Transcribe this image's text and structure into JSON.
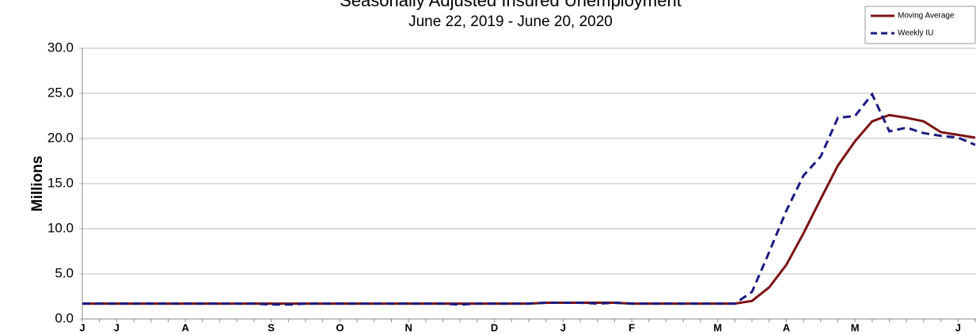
{
  "chart_data": {
    "type": "line",
    "title": "Seasonally Adjusted Insured Unemployment",
    "subtitle": "June 22, 2019 - June 20, 2020",
    "y_label": "Millions",
    "categories": [
      "J",
      null,
      "J",
      null,
      null,
      null,
      "A",
      null,
      null,
      null,
      null,
      "S",
      null,
      null,
      null,
      "O",
      null,
      null,
      null,
      "N",
      null,
      null,
      null,
      null,
      "D",
      null,
      null,
      null,
      "J",
      null,
      null,
      null,
      "F",
      null,
      null,
      null,
      null,
      "M",
      null,
      null,
      null,
      "A",
      null,
      null,
      null,
      "M",
      null,
      null,
      null,
      null,
      null,
      "J",
      null
    ],
    "series": [
      {
        "name": "Moving Average",
        "color": "#7b1212",
        "dash": false,
        "values": [
          1.7,
          1.7,
          1.7,
          1.7,
          1.7,
          1.7,
          1.7,
          1.7,
          1.7,
          1.7,
          1.7,
          1.7,
          1.7,
          1.7,
          1.7,
          1.7,
          1.7,
          1.7,
          1.7,
          1.7,
          1.7,
          1.7,
          1.7,
          1.7,
          1.7,
          1.7,
          1.7,
          1.8,
          1.8,
          1.8,
          1.8,
          1.8,
          1.7,
          1.7,
          1.7,
          1.7,
          1.7,
          1.7,
          1.7,
          2.0,
          3.5,
          6.0,
          9.5,
          13.3,
          17.0,
          19.7,
          21.9,
          22.6,
          22.3,
          21.9,
          20.7,
          20.4,
          20.1
        ]
      },
      {
        "name": "Weekly IU",
        "color": "#1a1a80",
        "dash": true,
        "values": [
          1.7,
          1.7,
          1.7,
          1.7,
          1.7,
          1.7,
          1.7,
          1.7,
          1.7,
          1.7,
          1.7,
          1.6,
          1.6,
          1.7,
          1.7,
          1.7,
          1.7,
          1.7,
          1.7,
          1.7,
          1.7,
          1.7,
          1.6,
          1.7,
          1.7,
          1.7,
          1.7,
          1.8,
          1.8,
          1.8,
          1.7,
          1.8,
          1.7,
          1.7,
          1.7,
          1.7,
          1.7,
          1.7,
          1.7,
          3.0,
          7.4,
          12.0,
          15.9,
          18.0,
          22.3,
          22.5,
          24.9,
          20.8,
          21.2,
          20.6,
          20.3,
          20.1,
          19.3
        ]
      }
    ],
    "ylim": [
      0,
      30
    ],
    "yticks": [
      {
        "value": 0,
        "label": "0.0"
      },
      {
        "value": 5,
        "label": "5.0"
      },
      {
        "value": 10,
        "label": "10.0"
      },
      {
        "value": 15,
        "label": "15.0"
      },
      {
        "value": 20,
        "label": "20.0"
      },
      {
        "value": 25,
        "label": "25.0"
      },
      {
        "value": 30,
        "label": "30.0"
      }
    ],
    "grid": true,
    "legend": "upper right"
  }
}
